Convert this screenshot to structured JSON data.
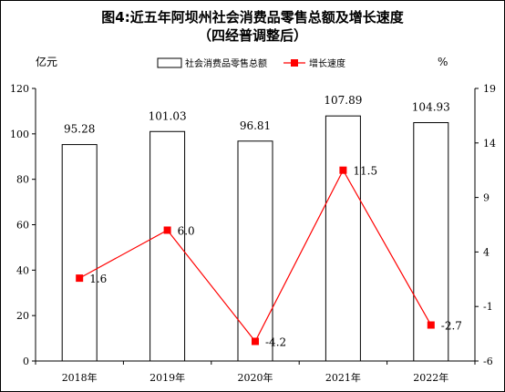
{
  "chart_data": {
    "type": "bar+line",
    "title": "图4:近五年阿坝州社会消费品零售总额及增长速度",
    "subtitle": "（四经普调整后）",
    "categories": [
      "2018年",
      "2019年",
      "2020年",
      "2021年",
      "2022年"
    ],
    "series": [
      {
        "name": "社会消费品零售总额",
        "type": "bar",
        "axis": "left",
        "values": [
          95.28,
          101.03,
          96.81,
          107.89,
          104.93
        ],
        "labels": [
          "95.28",
          "101.03",
          "96.81",
          "107.89",
          "104.93"
        ],
        "color": "#ffffff"
      },
      {
        "name": "增长速度",
        "type": "line",
        "axis": "right",
        "values": [
          1.6,
          6.0,
          -4.2,
          11.5,
          -2.7
        ],
        "labels": [
          "1.6",
          "6.0",
          "-4.2",
          "11.5",
          "-2.7"
        ],
        "color": "#ff0000"
      }
    ],
    "y_left": {
      "unit": "亿元",
      "ylim": [
        0,
        120
      ],
      "ticks": [
        0,
        20,
        40,
        60,
        80,
        100,
        120
      ],
      "tick_labels": [
        "0",
        "20",
        "40",
        "60",
        "80",
        "100",
        "120"
      ]
    },
    "y_right": {
      "unit": "%",
      "ylim": [
        -6,
        19
      ],
      "ticks": [
        -6,
        -1,
        4,
        9,
        14,
        19
      ],
      "tick_labels": [
        "-6",
        "-1",
        "4",
        "9",
        "14",
        "19"
      ]
    },
    "legend": {
      "position": "top"
    },
    "grid": false
  }
}
